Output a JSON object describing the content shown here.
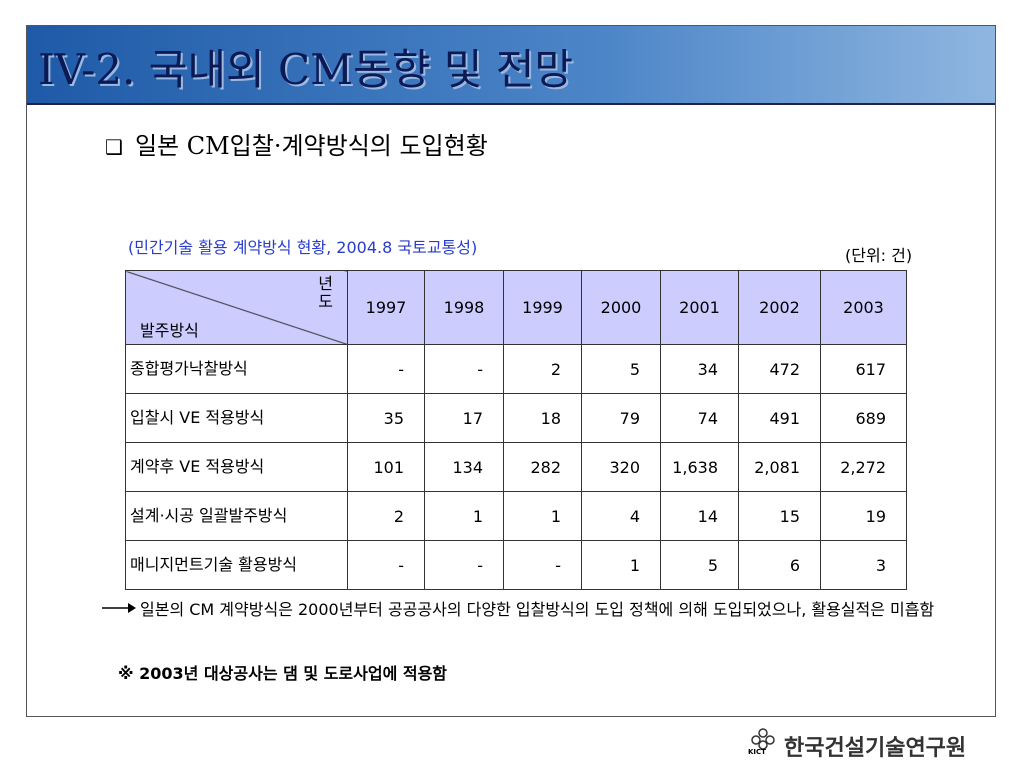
{
  "header": {
    "title": "IV-2. 국내외 CM동향 및 전망"
  },
  "subtitle": "일본 CM입찰·계약방식의 도입현황",
  "caption": "(민간기술 활용 계약방식 현황, 2004.8 국토교통성)",
  "unit": "(단위: 건)",
  "table": {
    "corner_top": "년도",
    "corner_bottom": "발주방식",
    "columns": [
      "1997",
      "1998",
      "1999",
      "2000",
      "2001",
      "2002",
      "2003"
    ],
    "rows": [
      [
        "종합평가낙찰방식",
        "-",
        "-",
        "2",
        "5",
        "34",
        "472",
        "617"
      ],
      [
        "입찰시 VE 적용방식",
        "35",
        "17",
        "18",
        "79",
        "74",
        "491",
        "689"
      ],
      [
        "계약후 VE 적용방식",
        "101",
        "134",
        "282",
        "320",
        "1,638",
        "2,081",
        "2,272"
      ],
      [
        "설계·시공 일괄발주방식",
        "2",
        "1",
        "1",
        "4",
        "14",
        "15",
        "19"
      ],
      [
        "매니지먼트기술 활용방식",
        "-",
        "-",
        "-",
        "1",
        "5",
        "6",
        "3"
      ]
    ]
  },
  "note": "일본의 CM 계약방식은 2000년부터 공공공사의 다양한 입찰방식의 도입 정책에 의해 도입되었으나, 활용실적은 미흡함",
  "footnote": "※ 2003년 대상공사는 댐 및 도로사업에 적용함",
  "logo": {
    "text": "한국건설기술연구원",
    "mark": "KICT"
  }
}
